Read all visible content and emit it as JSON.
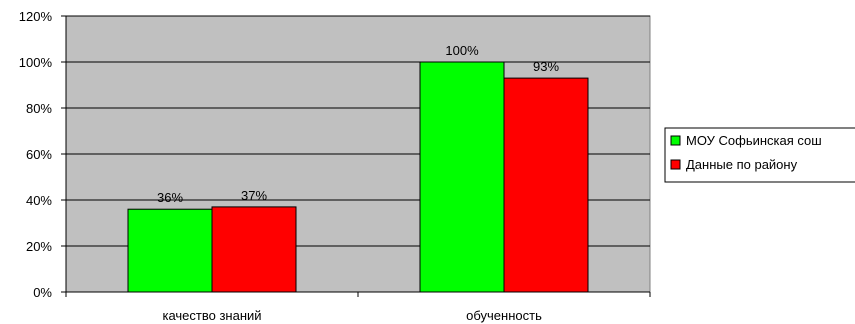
{
  "chart_data": {
    "type": "bar",
    "categories": [
      "качество знаний",
      "обученность"
    ],
    "series": [
      {
        "name": "МОУ Софьинская сош",
        "values": [
          36,
          100
        ],
        "labels": [
          "36%",
          "100%"
        ],
        "color": "#00ff00"
      },
      {
        "name": "Данные по району",
        "values": [
          37,
          93
        ],
        "labels": [
          "37%",
          "93%"
        ],
        "color": "#ff0000"
      }
    ],
    "title": "",
    "xlabel": "",
    "ylabel": "",
    "ylim": [
      0,
      120
    ],
    "yticks": [
      0,
      20,
      40,
      60,
      80,
      100,
      120
    ],
    "ytick_labels": [
      "0%",
      "20%",
      "40%",
      "60%",
      "80%",
      "100%",
      "120%"
    ],
    "grid": true,
    "legend_position": "right",
    "plot_background": "#c0c0c0",
    "gridline_color": "#000000"
  }
}
